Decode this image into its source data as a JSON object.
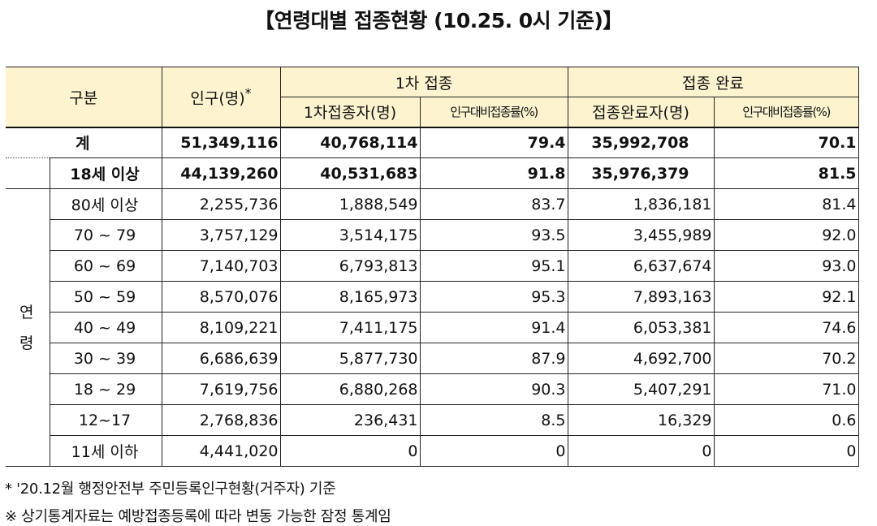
{
  "title": "【연령대별 접종현황 (10.25. 0시 기준)】",
  "header": {
    "category": "구분",
    "population": "인구(명)",
    "population_mark": "*",
    "first_dose": "1차 접종",
    "completed": "접종 완료",
    "first_count": "1차접종자(명)",
    "first_rate": "인구대비접종률(%)",
    "complete_count": "접종완료자(명)",
    "complete_rate": "인구대비접종률(%)"
  },
  "total_row": {
    "label": "계",
    "population": "51,349,116",
    "first_count": "40,768,114",
    "first_rate": "79.4",
    "complete_count": "35,992,708",
    "complete_rate": "70.1"
  },
  "adult_row": {
    "label": "18세 이상",
    "population": "44,139,260",
    "first_count": "40,531,683",
    "first_rate": "91.8",
    "complete_count": "35,976,379",
    "complete_rate": "81.5"
  },
  "age_label_top": "연",
  "age_label_bottom": "령",
  "rows": [
    {
      "label": "80세 이상",
      "population": "2,255,736",
      "first_count": "1,888,549",
      "first_rate": "83.7",
      "complete_count": "1,836,181",
      "complete_rate": "81.4"
    },
    {
      "label": "70 ~ 79",
      "population": "3,757,129",
      "first_count": "3,514,175",
      "first_rate": "93.5",
      "complete_count": "3,455,989",
      "complete_rate": "92.0"
    },
    {
      "label": "60 ~ 69",
      "population": "7,140,703",
      "first_count": "6,793,813",
      "first_rate": "95.1",
      "complete_count": "6,637,674",
      "complete_rate": "93.0"
    },
    {
      "label": "50 ~ 59",
      "population": "8,570,076",
      "first_count": "8,165,973",
      "first_rate": "95.3",
      "complete_count": "7,893,163",
      "complete_rate": "92.1"
    },
    {
      "label": "40 ~ 49",
      "population": "8,109,221",
      "first_count": "7,411,175",
      "first_rate": "91.4",
      "complete_count": "6,053,381",
      "complete_rate": "74.6"
    },
    {
      "label": "30 ~ 39",
      "population": "6,686,639",
      "first_count": "5,877,730",
      "first_rate": "87.9",
      "complete_count": "4,692,700",
      "complete_rate": "70.2"
    },
    {
      "label": "18 ~ 29",
      "population": "7,619,756",
      "first_count": "6,880,268",
      "first_rate": "90.3",
      "complete_count": "5,407,291",
      "complete_rate": "71.0"
    },
    {
      "label": "12~17",
      "population": "2,768,836",
      "first_count": "236,431",
      "first_rate": "8.5",
      "complete_count": "16,329",
      "complete_rate": "0.6"
    },
    {
      "label": "11세 이하",
      "population": "4,441,020",
      "first_count": "0",
      "first_rate": "0",
      "complete_count": "0",
      "complete_rate": "0"
    }
  ],
  "notes": {
    "note1": "* '20.12월 행정안전부 주민등록인구현황(거주자) 기준",
    "note2": "※ 상기통계자료는 예방접종등록에 따라 변동 가능한 잠정 통계임"
  }
}
